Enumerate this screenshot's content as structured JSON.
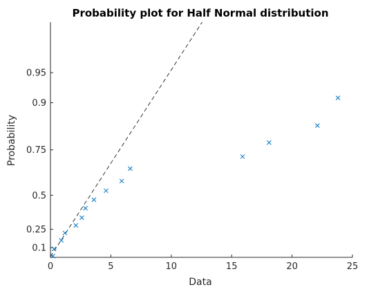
{
  "chart_data": {
    "type": "scatter",
    "title": "Probability plot for Half Normal distribution",
    "xlabel": "Data",
    "ylabel": "Probability",
    "xlim": [
      0,
      25
    ],
    "x_ticks": [
      0,
      5,
      10,
      15,
      20,
      25
    ],
    "x_tick_labels": [
      "0",
      "5",
      "10",
      "15",
      "20",
      "25"
    ],
    "y_scale": "half-normal probability",
    "y_ticks": [
      0.1,
      0.25,
      0.5,
      0.75,
      0.9,
      0.95
    ],
    "y_tick_labels": [
      "0.1",
      "0.25",
      "0.5",
      "0.75",
      "0.9",
      "0.95"
    ],
    "grid": false,
    "legend": "none",
    "marker": "x",
    "colors": {
      "points": "#0072BD",
      "reference_line": "#000000",
      "axes": "#262626"
    },
    "series": [
      {
        "x": [
          0.2,
          0.3,
          0.9,
          1.2,
          2.1,
          2.6,
          2.9,
          3.6,
          4.6,
          5.9,
          6.6,
          15.9,
          18.1,
          22.1,
          23.8
        ],
        "y": [
          0.03,
          0.09,
          0.16,
          0.22,
          0.28,
          0.34,
          0.41,
          0.47,
          0.53,
          0.59,
          0.66,
          0.72,
          0.78,
          0.84,
          0.91
        ]
      }
    ],
    "reference_line": {
      "x": [
        0,
        13
      ],
      "y": [
        0.025,
        0.99
      ],
      "style": "dashed"
    }
  }
}
